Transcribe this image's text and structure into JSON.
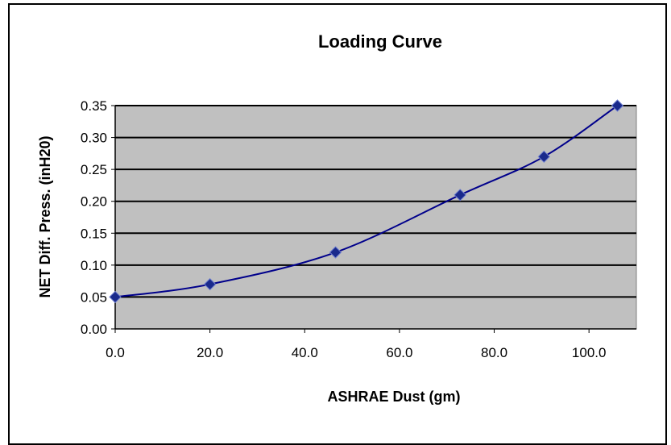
{
  "chart_data": {
    "type": "scatter",
    "title": "Loading Curve",
    "xlabel": "ASHRAE Dust (gm)",
    "ylabel": "NET Diff. Press. (inH20)",
    "xlim": [
      0,
      110
    ],
    "ylim": [
      0,
      0.35
    ],
    "x_ticks": [
      "0.0",
      "20.0",
      "40.0",
      "60.0",
      "80.0",
      "100.0"
    ],
    "x_tick_values": [
      0,
      20,
      40,
      60,
      80,
      100
    ],
    "y_ticks": [
      "0.00",
      "0.05",
      "0.10",
      "0.15",
      "0.20",
      "0.25",
      "0.30",
      "0.35"
    ],
    "y_tick_values": [
      0,
      0.05,
      0.1,
      0.15,
      0.2,
      0.25,
      0.3,
      0.35
    ],
    "grid": "horizontal",
    "line": "smooth",
    "colors": {
      "plot_bg": "#c0c0c0",
      "series": "#00008b",
      "marker": "#1a2a8c"
    },
    "series": [
      {
        "x": [
          0.0,
          20.0,
          46.5,
          72.8,
          90.5,
          106.0
        ],
        "y": [
          0.05,
          0.07,
          0.12,
          0.21,
          0.27,
          0.35
        ]
      }
    ]
  }
}
